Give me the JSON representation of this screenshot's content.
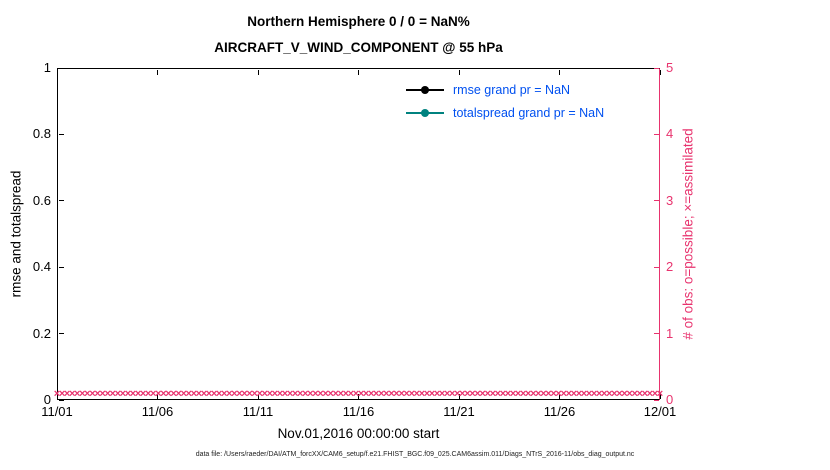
{
  "title": {
    "line1": "Northern Hemisphere 0 / 0 = NaN%",
    "line2": "AIRCRAFT_V_WIND_COMPONENT @ 55 hPa"
  },
  "axes": {
    "left": {
      "label": "rmse and totalspread",
      "ticks": [
        "0",
        "0.2",
        "0.4",
        "0.6",
        "0.8",
        "1"
      ],
      "range": [
        0,
        1
      ],
      "color": "#000000"
    },
    "right": {
      "label": "# of obs: o=possible; ×=assimilated",
      "ticks": [
        "0",
        "1",
        "2",
        "3",
        "4",
        "5"
      ],
      "range": [
        0,
        5
      ],
      "color": "#E8336E"
    },
    "x": {
      "label": "Nov.01,2016 00:00:00 start",
      "ticks": [
        "11/01",
        "11/06",
        "11/11",
        "11/16",
        "11/21",
        "11/26",
        "12/01"
      ]
    }
  },
  "legend": {
    "text_color": "#0050F0",
    "items": [
      {
        "label": "rmse grand pr = NaN",
        "color": "#000000",
        "marker": "filled-circle"
      },
      {
        "label": "totalspread grand pr = NaN",
        "color": "#00827F",
        "marker": "filled-circle"
      }
    ]
  },
  "caption": "data file: /Users/raeder/DAI/ATM_forcXX/CAM6_setup/f.e21.FHIST_BGC.f09_025.CAM6assim.011/Diags_NTrS_2016-11/obs_diag_output.nc",
  "chart_data": {
    "type": "line",
    "title": "Northern Hemisphere 0 / 0 = NaN%",
    "subtitle": "AIRCRAFT_V_WIND_COMPONENT @ 55 hPa",
    "xlabel": "Nov.01,2016 00:00:00 start",
    "ylabel_left": "rmse and totalspread",
    "ylabel_right": "# of obs: o=possible; ×=assimilated",
    "x_ticks": [
      "11/01",
      "11/06",
      "11/11",
      "11/16",
      "11/21",
      "11/26",
      "12/01"
    ],
    "ylim_left": [
      0,
      1
    ],
    "ylim_right": [
      0,
      5
    ],
    "grid": false,
    "legend_position": "inside upper right, no box",
    "series": [
      {
        "name": "rmse",
        "grand_pr": "NaN",
        "color": "#000000",
        "axis": "left",
        "values": [
          null,
          null,
          null,
          null,
          null,
          null,
          null
        ],
        "note": "all values NaN, no line drawn"
      },
      {
        "name": "totalspread",
        "grand_pr": "NaN",
        "color": "#00827F",
        "axis": "left",
        "values": [
          null,
          null,
          null,
          null,
          null,
          null,
          null
        ],
        "note": "all values NaN, no line drawn"
      },
      {
        "name": "obs possible (o)",
        "color": "#E8336E",
        "axis": "right",
        "values": [
          0,
          0,
          0,
          0,
          0,
          0,
          0
        ],
        "note": "constant 0 across entire date range"
      },
      {
        "name": "obs assimilated (×)",
        "color": "#E8336E",
        "axis": "right",
        "values": [
          0,
          0,
          0,
          0,
          0,
          0,
          0
        ],
        "note": "constant 0 across entire date range; dense × markers along y=0"
      }
    ],
    "obs_marker_count": 120
  }
}
